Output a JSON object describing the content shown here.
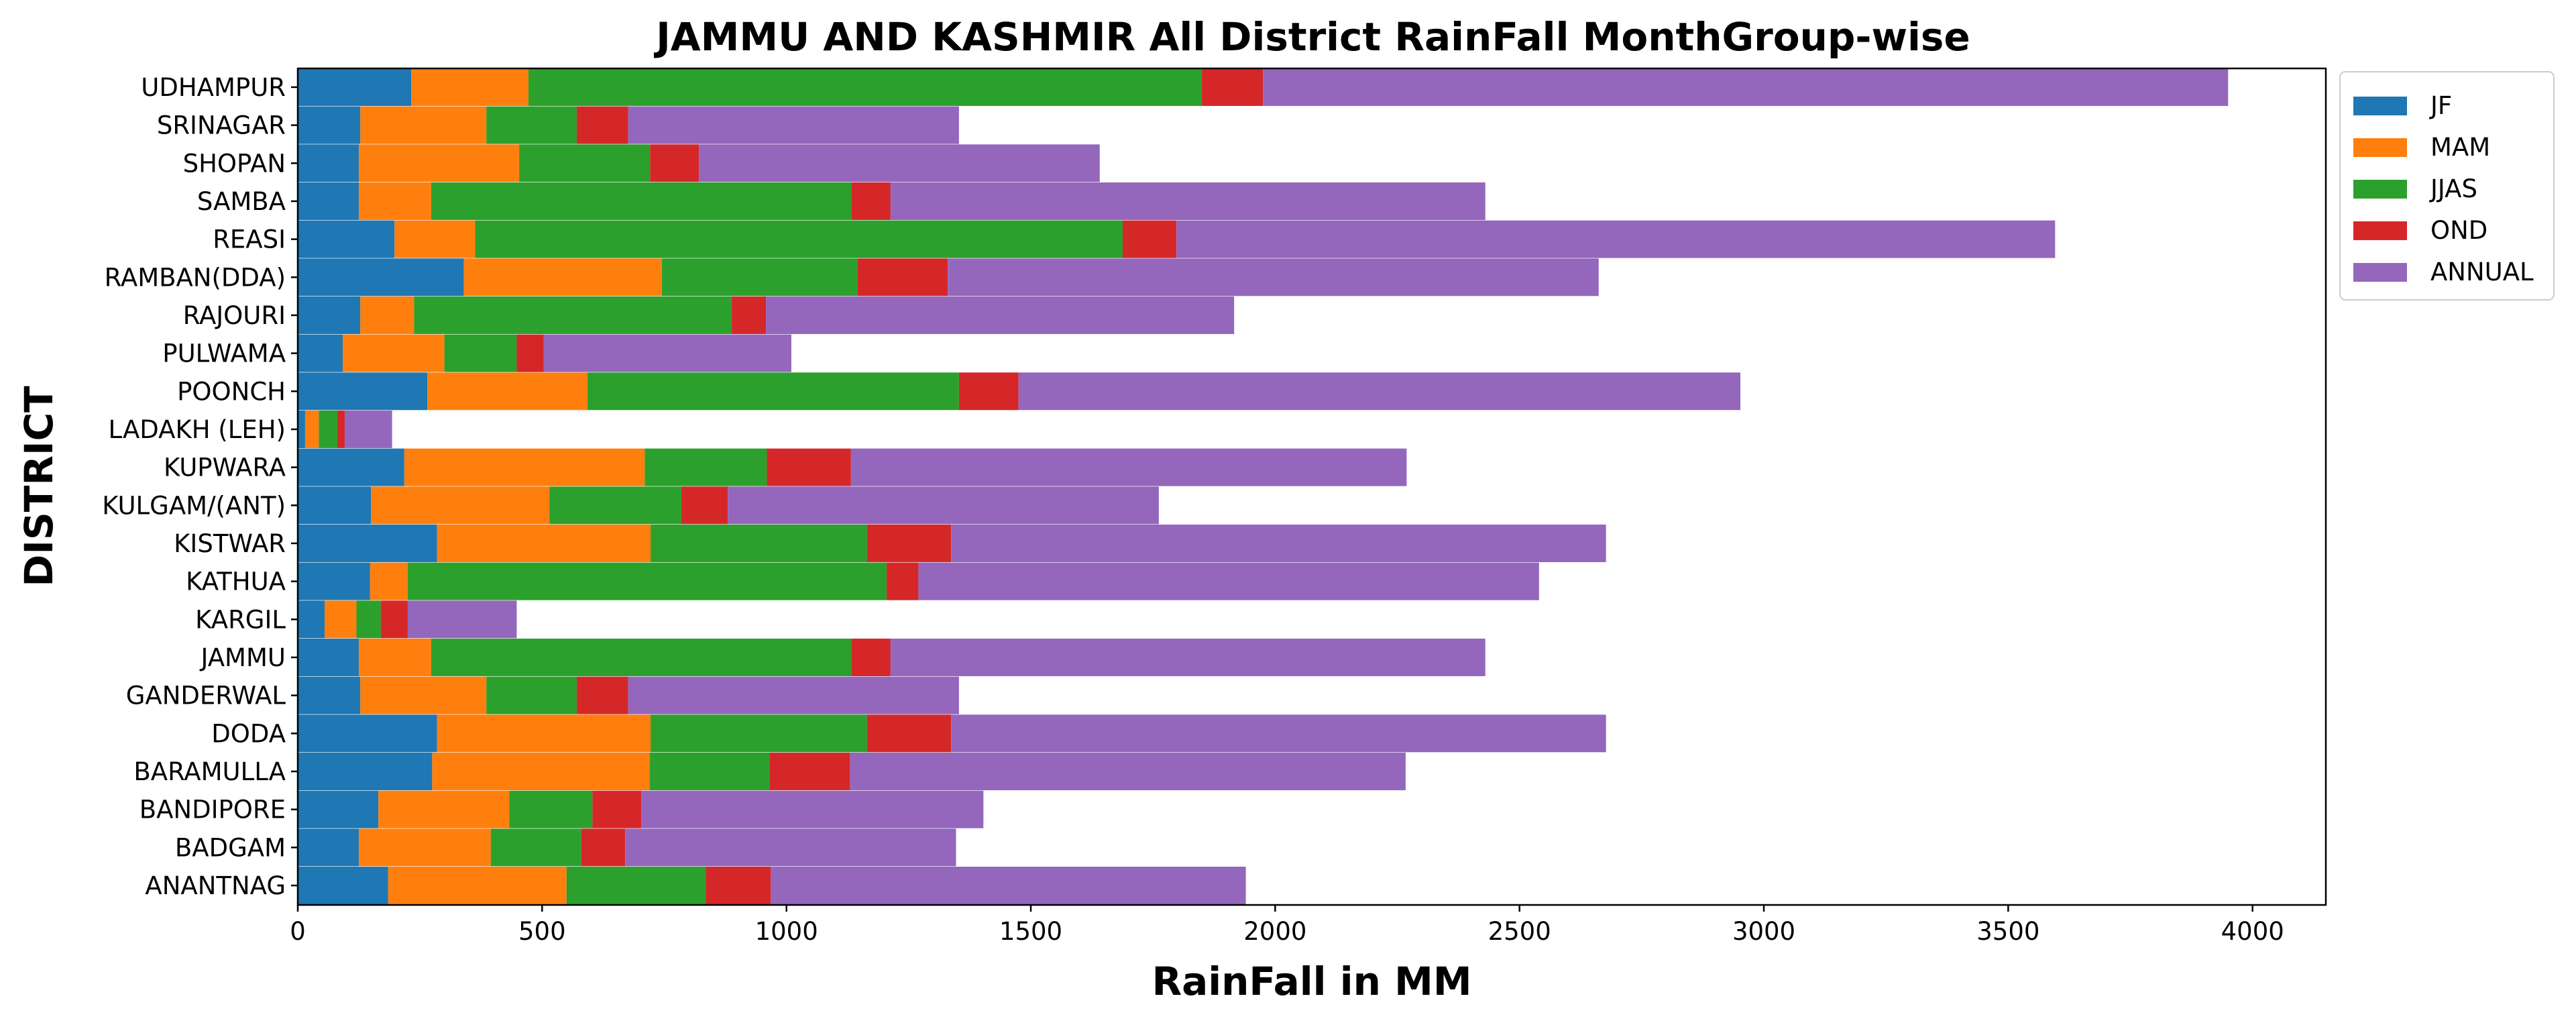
{
  "chart_data": {
    "type": "bar",
    "orientation": "horizontal",
    "stacked": true,
    "title": "JAMMU AND KASHMIR All District RainFall MonthGroup-wise",
    "xlabel": "RainFall in MM",
    "ylabel": "DISTRICT",
    "xlim": [
      0,
      4150
    ],
    "xticks": [
      0,
      500,
      1000,
      1500,
      2000,
      2500,
      3000,
      3500,
      4000
    ],
    "grid": false,
    "legend_position": "top-right outside",
    "categories": [
      "ANANTNAG",
      "BADGAM",
      "BANDIPORE",
      "BARAMULLA",
      "DODA",
      "GANDERWAL",
      "JAMMU",
      "KARGIL",
      "KATHUA",
      "KISTWAR",
      "KULGAM/(ANT)",
      "KUPWARA",
      "LADAKH (LEH)",
      "POONCH",
      "PULWAMA",
      "RAJOURI",
      "RAMBAN(DDA)",
      "REASI",
      "SAMBA",
      "SHOPAN",
      "SRINAGAR",
      "UDHAMPUR"
    ],
    "series": [
      {
        "name": "JF",
        "color": "#1f77b4",
        "values": [
          185,
          125,
          165,
          275,
          285,
          128,
          125,
          55,
          148,
          285,
          150,
          218,
          15,
          265,
          92,
          128,
          340,
          198,
          125,
          125,
          128,
          232
        ]
      },
      {
        "name": "MAM",
        "color": "#ff7f0e",
        "values": [
          365,
          270,
          268,
          445,
          437,
          258,
          148,
          65,
          77,
          437,
          365,
          492,
          28,
          328,
          208,
          110,
          405,
          165,
          148,
          328,
          258,
          240
        ]
      },
      {
        "name": "JJAS",
        "color": "#2ca02c",
        "values": [
          285,
          185,
          170,
          245,
          443,
          185,
          860,
          50,
          980,
          443,
          270,
          250,
          38,
          760,
          148,
          650,
          400,
          1325,
          860,
          268,
          185,
          1378
        ]
      },
      {
        "name": "OND",
        "color": "#d62728",
        "values": [
          133,
          90,
          100,
          165,
          172,
          105,
          80,
          55,
          65,
          172,
          95,
          172,
          15,
          122,
          55,
          70,
          185,
          110,
          80,
          100,
          105,
          125
        ]
      },
      {
        "name": "ANNUAL",
        "color": "#9467bd",
        "values": [
          972,
          677,
          700,
          1137,
          1340,
          677,
          1217,
          223,
          1270,
          1340,
          882,
          1137,
          97,
          1477,
          507,
          958,
          1332,
          1798,
          1217,
          820,
          677,
          1975
        ]
      }
    ]
  }
}
